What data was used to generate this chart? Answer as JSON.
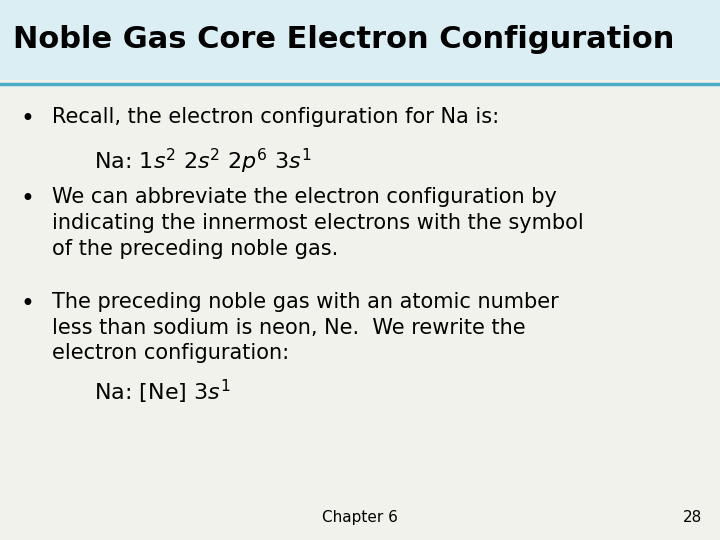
{
  "title": "Noble Gas Core Electron Configuration",
  "title_color": "#000000",
  "title_bg_color": "#daeef3",
  "title_bar_color": "#4bacc6",
  "content_bg_color": "#f2f2ec",
  "bullet1": "Recall, the electron configuration for Na is:",
  "bullet2_line1": "We can abbreviate the electron configuration by",
  "bullet2_line2": "indicating the innermost electrons with the symbol",
  "bullet2_line3": "of the preceding noble gas.",
  "bullet3_line1": "The preceding noble gas with an atomic number",
  "bullet3_line2": "less than sodium is neon, Ne.  We rewrite the",
  "bullet3_line3": "electron configuration:",
  "footer": "Chapter 6",
  "page_num": "28",
  "font_size_title": 22,
  "font_size_body": 15,
  "font_size_formula": 15,
  "font_size_footer": 11
}
